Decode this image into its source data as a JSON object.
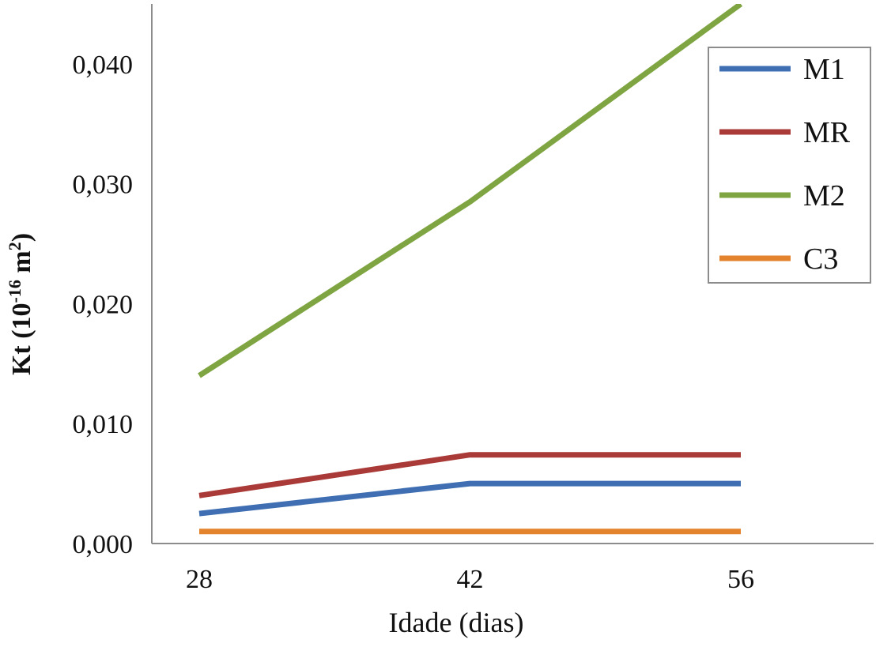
{
  "chart_data": {
    "type": "line",
    "title": "",
    "xlabel": "Idade (dias)",
    "ylabel": {
      "prefix": "Kt (10",
      "exponent": "-16",
      "unit": " m",
      "unit_exponent": "2",
      "suffix": ")"
    },
    "x": [
      28,
      42,
      56
    ],
    "x_tick_labels": [
      "28",
      "42",
      "56"
    ],
    "ylim": [
      0,
      0.045
    ],
    "y_ticks": [
      0,
      0.01,
      0.02,
      0.03,
      0.04
    ],
    "y_tick_labels": [
      "0,000",
      "0,010",
      "0,020",
      "0,030",
      "0,040"
    ],
    "grid": false,
    "legend_position": "top-right",
    "series": [
      {
        "name": "M1",
        "color": "#3f6fb2",
        "values": [
          0.0025,
          0.005,
          0.005
        ]
      },
      {
        "name": "MR",
        "color": "#a93a37",
        "values": [
          0.004,
          0.0074,
          0.0074
        ]
      },
      {
        "name": "M2",
        "color": "#7fa542",
        "values": [
          0.014,
          0.0285,
          0.045
        ]
      },
      {
        "name": "C3",
        "color": "#e3832d",
        "values": [
          0.001,
          0.001,
          0.001
        ]
      }
    ]
  }
}
